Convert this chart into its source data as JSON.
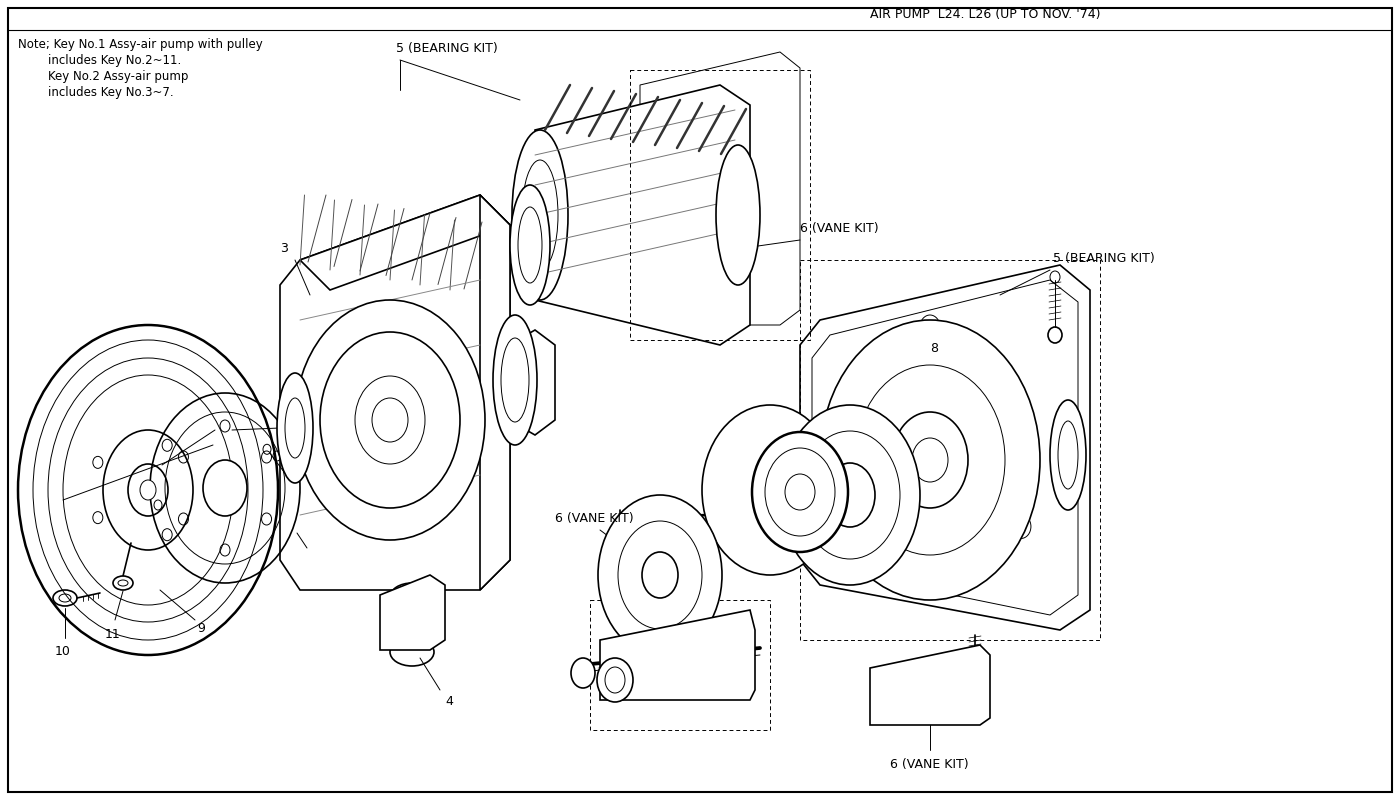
{
  "title": "AIR PUMP  L24. L26 (UP TO NOV. '74)",
  "bg_color": "#ffffff",
  "note_lines": [
    "Note; Key No.1 Assy-air pump with pulley",
    "        includes Key No.2~11.",
    "        Key No.2 Assy-air pump",
    "        includes Key No.3~7."
  ],
  "fig_width": 14.0,
  "fig_height": 8.0,
  "dpi": 100
}
